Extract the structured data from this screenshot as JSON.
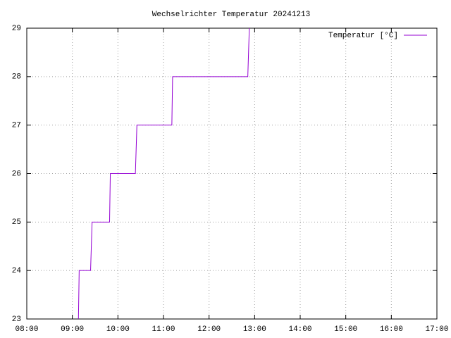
{
  "chart_data": {
    "type": "line",
    "title": "Wechselrichter Temperatur 20241213",
    "x": [
      "09:08",
      "09:09",
      "09:24",
      "09:26",
      "09:49",
      "09:50",
      "10:23",
      "10:25",
      "11:11",
      "11:12",
      "12:51",
      "12:53"
    ],
    "series": [
      {
        "name": "Temperatur [°C]",
        "color": "#9400d3",
        "values": [
          23,
          24,
          24,
          25,
          25,
          26,
          26,
          27,
          27,
          28,
          28,
          29
        ]
      }
    ],
    "xlim": [
      "08:00",
      "17:00"
    ],
    "xticks": [
      "08:00",
      "09:00",
      "10:00",
      "11:00",
      "12:00",
      "13:00",
      "14:00",
      "15:00",
      "16:00",
      "17:00"
    ],
    "ylim": [
      23,
      29
    ],
    "yticks": [
      23,
      24,
      25,
      26,
      27,
      28,
      29
    ],
    "grid": true,
    "legend": "top-right"
  }
}
